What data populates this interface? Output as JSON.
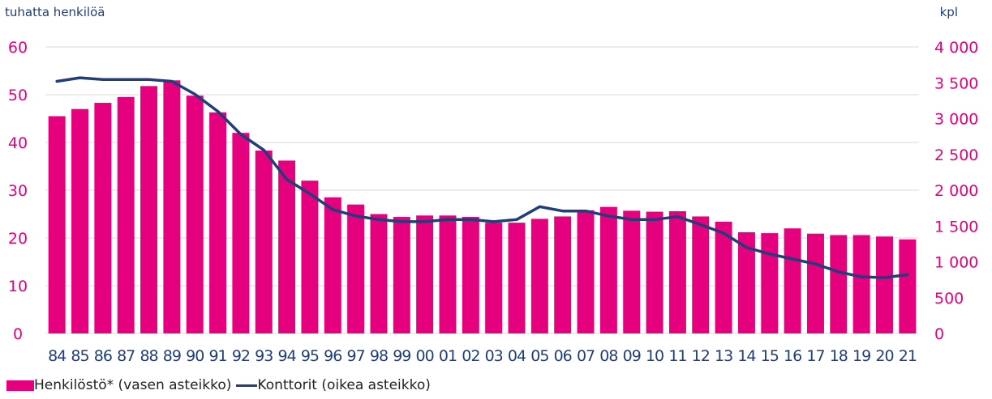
{
  "chart_data": {
    "type": "bar+line",
    "left_axis_unit": "tuhatta henkilöä",
    "right_axis_unit": "kpl",
    "left_ylim": [
      0,
      60
    ],
    "left_ticks": [
      "0",
      "10",
      "20",
      "30",
      "40",
      "50",
      "60"
    ],
    "right_ylim": [
      0,
      4000
    ],
    "right_ticks": [
      "0",
      "500",
      "1 000",
      "1 500",
      "2 000",
      "2 500",
      "3 000",
      "3 500",
      "4 000"
    ],
    "categories": [
      "84",
      "85",
      "86",
      "87",
      "88",
      "89",
      "90",
      "91",
      "92",
      "93",
      "94",
      "95",
      "96",
      "97",
      "98",
      "99",
      "00",
      "01",
      "02",
      "03",
      "04",
      "05",
      "06",
      "07",
      "08",
      "09",
      "10",
      "11",
      "12",
      "13",
      "14",
      "15",
      "16",
      "17",
      "18",
      "19",
      "20",
      "21"
    ],
    "series": [
      {
        "name": "Henkilöstö* (vasen asteikko)",
        "type": "bar",
        "axis": "left",
        "color": "#e5007e",
        "values": [
          45.5,
          47.0,
          48.3,
          49.5,
          51.8,
          53.0,
          49.8,
          46.3,
          42.0,
          38.3,
          36.2,
          32.0,
          28.5,
          27.0,
          25.0,
          24.4,
          24.7,
          24.7,
          24.4,
          23.2,
          23.2,
          24.0,
          24.5,
          25.8,
          26.5,
          25.7,
          25.5,
          25.6,
          24.5,
          23.4,
          21.2,
          21.0,
          22.0,
          20.9,
          20.6,
          20.6,
          20.3,
          19.7
        ]
      },
      {
        "name": "Konttorit (oikea asteikko)",
        "type": "line",
        "axis": "right",
        "color": "#1f3e7a",
        "values": [
          3520,
          3570,
          3545,
          3545,
          3545,
          3520,
          3340,
          3100,
          2780,
          2560,
          2150,
          1950,
          1730,
          1640,
          1590,
          1560,
          1560,
          1590,
          1590,
          1560,
          1590,
          1770,
          1710,
          1710,
          1640,
          1590,
          1590,
          1630,
          1520,
          1400,
          1200,
          1110,
          1040,
          970,
          860,
          790,
          780,
          820
        ]
      }
    ],
    "grid": true,
    "legend_position": "bottom-left"
  }
}
